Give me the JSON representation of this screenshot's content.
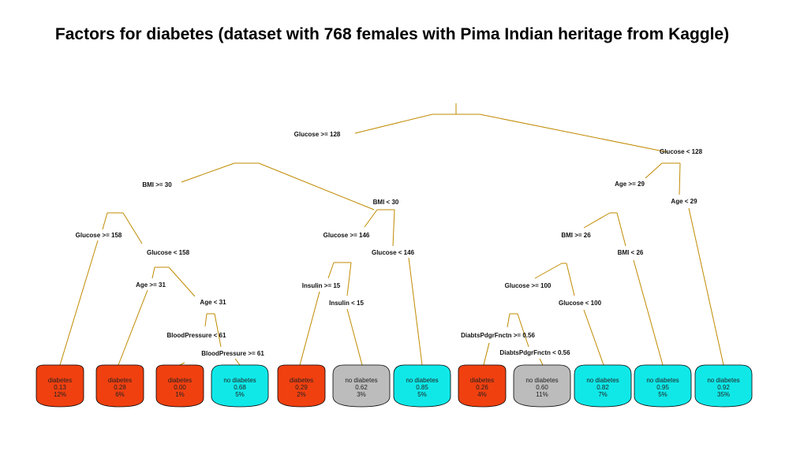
{
  "title": "Factors for diabetes (dataset with 768 females with Pima Indian heritage from Kaggle)",
  "colors": {
    "edge": "#c08a00",
    "diabetes": "#f04010",
    "no_diabetes": "#10e8e8",
    "uncertain": "#bcbcbc"
  },
  "splits": [
    {
      "id": "s1",
      "text": "Glucose >= 128"
    },
    {
      "id": "s2",
      "text": "Glucose < 128"
    },
    {
      "id": "s3",
      "text": "BMI >= 30"
    },
    {
      "id": "s4",
      "text": "BMI < 30"
    },
    {
      "id": "s5",
      "text": "Glucose >= 158"
    },
    {
      "id": "s6",
      "text": "Glucose < 158"
    },
    {
      "id": "s7",
      "text": "Age >= 31"
    },
    {
      "id": "s8",
      "text": "Age < 31"
    },
    {
      "id": "s9",
      "text": "BloodPressure < 61"
    },
    {
      "id": "s10",
      "text": "BloodPressure >= 61"
    },
    {
      "id": "s11",
      "text": "Glucose >= 146"
    },
    {
      "id": "s12",
      "text": "Glucose < 146"
    },
    {
      "id": "s13",
      "text": "Insulin >= 15"
    },
    {
      "id": "s14",
      "text": "Insulin < 15"
    },
    {
      "id": "s15",
      "text": "Age >= 29"
    },
    {
      "id": "s16",
      "text": "Age < 29"
    },
    {
      "id": "s17",
      "text": "BMI >= 26"
    },
    {
      "id": "s18",
      "text": "BMI < 26"
    },
    {
      "id": "s19",
      "text": "Glucose >= 100"
    },
    {
      "id": "s20",
      "text": "Glucose < 100"
    },
    {
      "id": "s21",
      "text": "DiabtsPdgrFnctn >= 0.56"
    },
    {
      "id": "s22",
      "text": "DiabtsPdgrFnctn < 0.56"
    }
  ],
  "leaves": [
    {
      "cls": "diabetes",
      "prob": "0.13",
      "pct": "12%",
      "kind": "diabetes"
    },
    {
      "cls": "diabetes",
      "prob": "0.28",
      "pct": "6%",
      "kind": "diabetes"
    },
    {
      "cls": "diabetes",
      "prob": "0.00",
      "pct": "1%",
      "kind": "diabetes"
    },
    {
      "cls": "no diabetes",
      "prob": "0.68",
      "pct": "5%",
      "kind": "no_diabetes"
    },
    {
      "cls": "diabetes",
      "prob": "0.29",
      "pct": "2%",
      "kind": "diabetes"
    },
    {
      "cls": "no diabetes",
      "prob": "0.62",
      "pct": "3%",
      "kind": "uncertain"
    },
    {
      "cls": "no diabetes",
      "prob": "0.85",
      "pct": "5%",
      "kind": "no_diabetes"
    },
    {
      "cls": "diabetes",
      "prob": "0.26",
      "pct": "4%",
      "kind": "diabetes"
    },
    {
      "cls": "no diabetes",
      "prob": "0.60",
      "pct": "11%",
      "kind": "uncertain"
    },
    {
      "cls": "no diabetes",
      "prob": "0.82",
      "pct": "7%",
      "kind": "no_diabetes"
    },
    {
      "cls": "no diabetes",
      "prob": "0.95",
      "pct": "5%",
      "kind": "no_diabetes"
    },
    {
      "cls": "no diabetes",
      "prob": "0.92",
      "pct": "35%",
      "kind": "no_diabetes"
    }
  ]
}
